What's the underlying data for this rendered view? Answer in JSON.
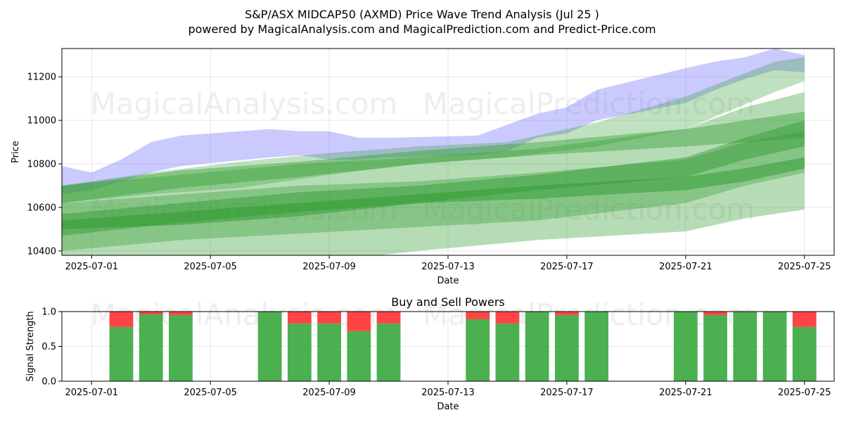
{
  "header": {
    "title": "S&P/ASX MIDCAP50 (AXMD) Price Wave Trend Analysis (Jul 25 )",
    "subtitle": "powered by MagicalAnalysis.com and MagicalPrediction.com and Predict-Price.com"
  },
  "watermarks": [
    "MagicalAnalysis.com",
    "MagicalPrediction.com"
  ],
  "colors": {
    "blue_band": "#6666ff",
    "green_band": "#2e9a2e",
    "buy": "#4caf50",
    "sell": "#ff4444",
    "grid": "#e6e6e6"
  },
  "chart_data": [
    {
      "type": "area",
      "title": "",
      "xlabel": "Date",
      "ylabel": "Price",
      "xlim": [
        "2025-06-30",
        "2025-07-26"
      ],
      "ylim": [
        10380,
        11330
      ],
      "x_ticks": [
        "2025-07-01",
        "2025-07-05",
        "2025-07-09",
        "2025-07-13",
        "2025-07-17",
        "2025-07-21",
        "2025-07-25"
      ],
      "y_ticks": [
        10400,
        10600,
        10800,
        11000,
        11200
      ],
      "grid": true,
      "series": [
        {
          "x": [
            "2025-06-30",
            "2025-07-01",
            "2025-07-02",
            "2025-07-03",
            "2025-07-04",
            "2025-07-07",
            "2025-07-08",
            "2025-07-09",
            "2025-07-10",
            "2025-07-11",
            "2025-07-14",
            "2025-07-15",
            "2025-07-16",
            "2025-07-17",
            "2025-07-18",
            "2025-07-21",
            "2025-07-22",
            "2025-07-23",
            "2025-07-24",
            "2025-07-25"
          ],
          "low": [
            10660,
            10680,
            10720,
            10760,
            10790,
            10830,
            10840,
            10820,
            10820,
            10830,
            10840,
            10860,
            10920,
            10940,
            11000,
            11080,
            11140,
            11190,
            11230,
            11220
          ],
          "high": [
            10790,
            10760,
            10820,
            10900,
            10930,
            10960,
            10950,
            10950,
            10920,
            10920,
            10930,
            10980,
            11030,
            11060,
            11140,
            11240,
            11270,
            11290,
            11330,
            11300
          ]
        },
        {
          "x": [
            "2025-06-30",
            "2025-07-03",
            "2025-07-06",
            "2025-07-09",
            "2025-07-12",
            "2025-07-15",
            "2025-07-18",
            "2025-07-21",
            "2025-07-24",
            "2025-07-25"
          ],
          "low": [
            10620,
            10660,
            10690,
            10750,
            10800,
            10830,
            10880,
            10960,
            11130,
            11180
          ],
          "high": [
            10700,
            10760,
            10810,
            10850,
            10880,
            10900,
            10990,
            11110,
            11270,
            11290
          ]
        },
        {
          "x": [
            "2025-06-30",
            "2025-07-04",
            "2025-07-08",
            "2025-07-12",
            "2025-07-16",
            "2025-07-21",
            "2025-07-23",
            "2025-07-25"
          ],
          "low": [
            10620,
            10690,
            10740,
            10800,
            10840,
            10880,
            10900,
            10920
          ],
          "high": [
            10700,
            10770,
            10810,
            10860,
            10900,
            10960,
            11000,
            11040
          ]
        },
        {
          "x": [
            "2025-06-30",
            "2025-07-04",
            "2025-07-08",
            "2025-07-12",
            "2025-07-16",
            "2025-07-21",
            "2025-07-23",
            "2025-07-25"
          ],
          "low": [
            10400,
            10450,
            10480,
            10510,
            10540,
            10620,
            10700,
            10760
          ],
          "high": [
            10700,
            10750,
            10800,
            10830,
            10870,
            10960,
            11060,
            11130
          ]
        },
        {
          "x": [
            "2025-06-30",
            "2025-07-04",
            "2025-07-08",
            "2025-07-12",
            "2025-07-16",
            "2025-07-21",
            "2025-07-23",
            "2025-07-25"
          ],
          "low": [
            10470,
            10530,
            10580,
            10620,
            10680,
            10740,
            10820,
            10880
          ],
          "high": [
            10570,
            10620,
            10670,
            10700,
            10750,
            10830,
            10920,
            11000
          ]
        },
        {
          "x": [
            "2025-06-30",
            "2025-07-04",
            "2025-07-08",
            "2025-07-12",
            "2025-07-16",
            "2025-07-21",
            "2025-07-23",
            "2025-07-25"
          ],
          "low": [
            10260,
            10290,
            10340,
            10400,
            10450,
            10490,
            10550,
            10590
          ],
          "high": [
            10620,
            10660,
            10700,
            10720,
            10760,
            10820,
            10900,
            10950
          ]
        },
        {
          "x": [
            "2025-06-30",
            "2025-07-04",
            "2025-07-08",
            "2025-07-12",
            "2025-07-16",
            "2025-07-21",
            "2025-07-23",
            "2025-07-25"
          ],
          "low": [
            10500,
            10520,
            10560,
            10620,
            10640,
            10680,
            10720,
            10780
          ],
          "high": [
            10540,
            10580,
            10620,
            10660,
            10700,
            10740,
            10780,
            10830
          ]
        }
      ]
    },
    {
      "type": "bar",
      "title": "Buy and Sell Powers",
      "xlabel": "Date",
      "ylabel": "Signal Strength",
      "xlim": [
        "2025-06-30",
        "2025-07-26"
      ],
      "ylim": [
        0,
        1
      ],
      "x_ticks": [
        "2025-07-01",
        "2025-07-05",
        "2025-07-09",
        "2025-07-13",
        "2025-07-17",
        "2025-07-21",
        "2025-07-25"
      ],
      "y_ticks": [
        "0.0",
        "0.5",
        "1.0"
      ],
      "grid": true,
      "x": [
        "2025-07-02",
        "2025-07-03",
        "2025-07-04",
        "2025-07-07",
        "2025-07-08",
        "2025-07-09",
        "2025-07-10",
        "2025-07-11",
        "2025-07-14",
        "2025-07-15",
        "2025-07-16",
        "2025-07-17",
        "2025-07-18",
        "2025-07-21",
        "2025-07-22",
        "2025-07-23",
        "2025-07-24",
        "2025-07-25"
      ],
      "series": [
        {
          "values": [
            0.78,
            0.96,
            0.95,
            1.0,
            0.83,
            0.83,
            0.72,
            0.83,
            0.89,
            0.83,
            1.0,
            0.95,
            1.0,
            1.0,
            0.95,
            1.0,
            1.0,
            0.78
          ]
        },
        {
          "values": [
            0.22,
            0.04,
            0.05,
            0.0,
            0.17,
            0.17,
            0.28,
            0.17,
            0.11,
            0.17,
            0.0,
            0.05,
            0.0,
            0.0,
            0.05,
            0.0,
            0.0,
            0.22
          ]
        }
      ]
    }
  ]
}
